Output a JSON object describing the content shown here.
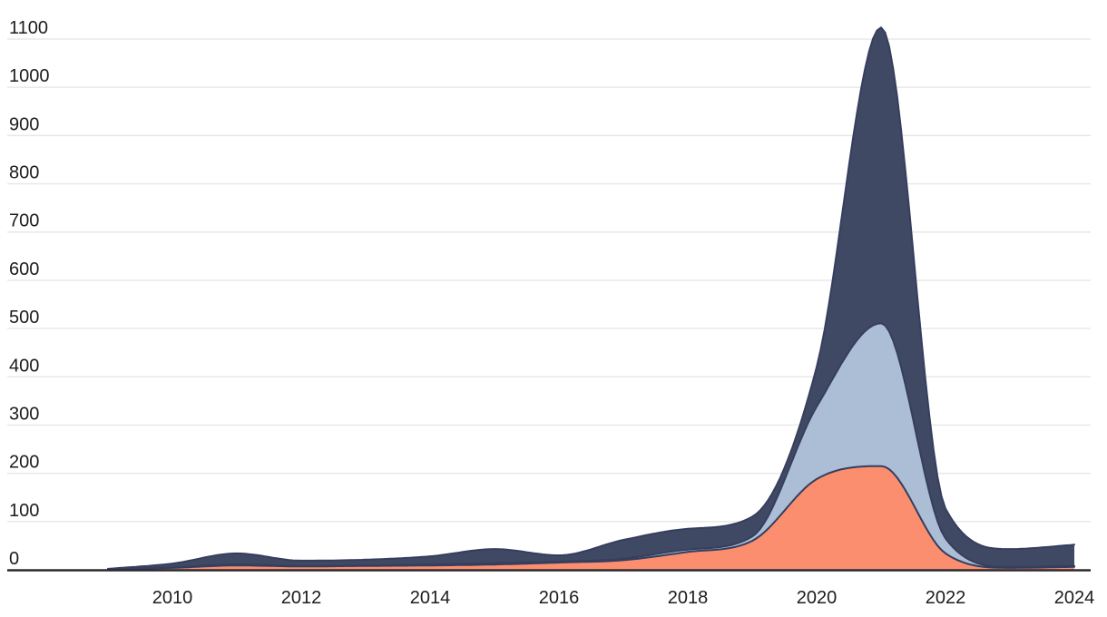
{
  "chart_data": {
    "type": "area",
    "stacked": true,
    "title": "",
    "xlabel": "",
    "ylabel": "",
    "legend": "none",
    "grid": "horizontal",
    "x": [
      2009,
      2010,
      2011,
      2012,
      2013,
      2014,
      2015,
      2016,
      2017,
      2018,
      2019,
      2020,
      2021,
      2022,
      2023,
      2024
    ],
    "series": [
      {
        "name": "series-orange",
        "color": "#fb8e6e",
        "values": [
          1,
          4,
          9,
          7,
          8,
          9,
          11,
          15,
          20,
          37,
          60,
          188,
          215,
          34,
          4,
          6
        ]
      },
      {
        "name": "series-light-blue",
        "color": "#abbed6",
        "values": [
          0,
          1,
          2,
          1,
          1,
          2,
          3,
          2,
          3,
          5,
          9,
          150,
          296,
          31,
          2,
          2
        ]
      },
      {
        "name": "series-navy",
        "color": "#404963",
        "values": [
          1,
          8,
          23,
          11,
          12,
          17,
          29,
          13,
          39,
          43,
          41,
          82,
          613,
          62,
          37,
          44
        ]
      }
    ],
    "stacked_totals": [
      2,
      13,
      34,
      19,
      21,
      28,
      43,
      30,
      62,
      85,
      110,
      420,
      1124,
      127,
      43,
      52
    ],
    "xlim": [
      2009,
      2024
    ],
    "ylim": [
      0,
      1100
    ],
    "x_ticks": [
      2010,
      2012,
      2014,
      2016,
      2018,
      2020,
      2022,
      2024
    ],
    "x_tick_labels": [
      "2010",
      "2012",
      "2014",
      "2016",
      "2018",
      "2020",
      "2022",
      "2024"
    ],
    "y_ticks": [
      0,
      100,
      200,
      300,
      400,
      500,
      600,
      700,
      800,
      900,
      1000,
      1100
    ],
    "y_tick_labels": [
      "0",
      "100",
      "200",
      "300",
      "400",
      "500",
      "600",
      "700",
      "800",
      "900",
      "1000",
      "1100"
    ]
  },
  "style": {
    "background_color": "#ffffff",
    "grid_color": "#e7e7e7",
    "axis_line_color": "#2a2a30",
    "label_color": "#1c1c1c",
    "area_outline_color": "#353e5e"
  }
}
